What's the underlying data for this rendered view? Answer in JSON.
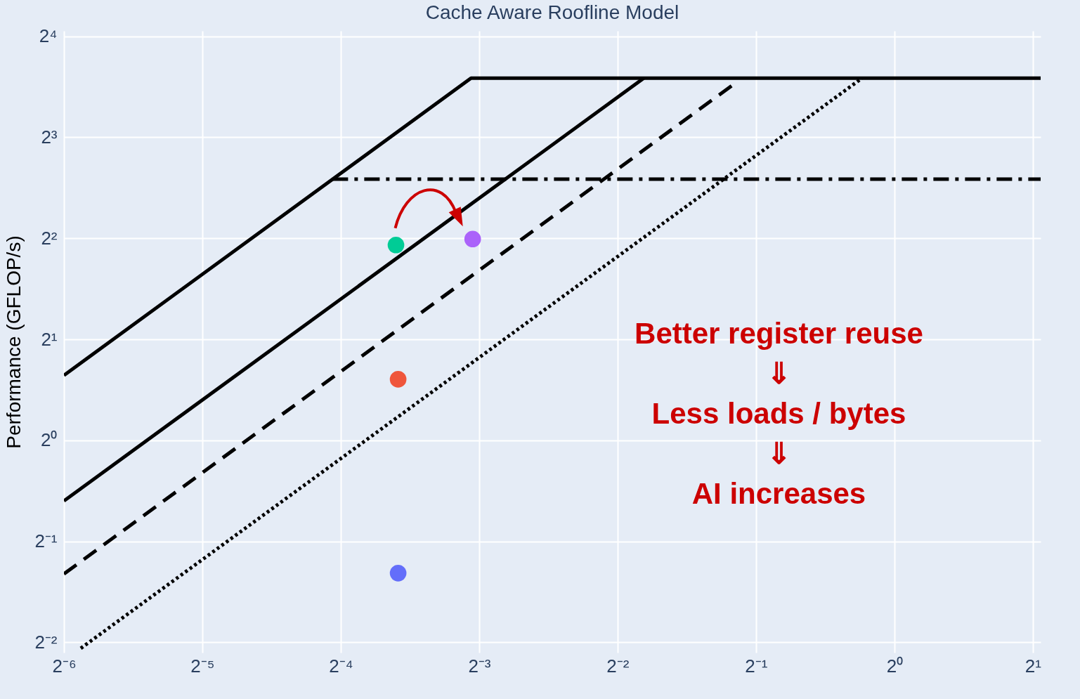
{
  "chart_data": {
    "type": "line",
    "title": "Cache Aware Roofline Model",
    "ylabel": "Performance (GFLOP/s)",
    "log": "xy",
    "grid": true,
    "xlim": [
      0.015625,
      2.08
    ],
    "ylim": [
      0.233,
      16.6
    ],
    "xticks": [
      {
        "value": 0.015625,
        "label": "2⁻⁶"
      },
      {
        "value": 0.03125,
        "label": "2⁻⁵"
      },
      {
        "value": 0.0625,
        "label": "2⁻⁴"
      },
      {
        "value": 0.125,
        "label": "2⁻³"
      },
      {
        "value": 0.25,
        "label": "2⁻²"
      },
      {
        "value": 0.5,
        "label": "2⁻¹"
      },
      {
        "value": 1,
        "label": "2⁰"
      },
      {
        "value": 2,
        "label": "2¹"
      }
    ],
    "yticks": [
      {
        "value": 0.25,
        "label": "2⁻²"
      },
      {
        "value": 0.5,
        "label": "2⁻¹"
      },
      {
        "value": 1,
        "label": "2⁰"
      },
      {
        "value": 2,
        "label": "2¹"
      },
      {
        "value": 4,
        "label": "2²"
      },
      {
        "value": 8,
        "label": "2³"
      },
      {
        "value": 16,
        "label": "2⁴"
      }
    ],
    "series": [
      {
        "type": "line",
        "color": "#000000",
        "line_style": "solid",
        "x": [
          0.015625,
          0.12,
          2.08
        ],
        "values": [
          1.5625,
          12,
          12
        ]
      },
      {
        "type": "line",
        "color": "#000000",
        "line_style": "solid",
        "x": [
          0.015625,
          0.285
        ],
        "values": [
          0.66,
          12
        ]
      },
      {
        "type": "line",
        "color": "#000000",
        "line_style": "dashed",
        "x": [
          0.015625,
          0.449
        ],
        "values": [
          0.4,
          11.56
        ]
      },
      {
        "type": "line",
        "color": "#000000",
        "line_style": "dotted",
        "x": [
          0.017,
          0.85
        ],
        "values": [
          0.24,
          12
        ]
      },
      {
        "type": "line",
        "color": "#000000",
        "line_style": "dashdot",
        "x": [
          0.06,
          2.08
        ],
        "values": [
          6,
          6
        ]
      },
      {
        "type": "scatter",
        "color": "#00cc96",
        "marker": "circle",
        "x": [
          0.0824
        ],
        "values": [
          3.82
        ]
      },
      {
        "type": "scatter",
        "color": "#ab63fa",
        "marker": "circle",
        "x": [
          0.121
        ],
        "values": [
          3.98
        ]
      },
      {
        "type": "scatter",
        "color": "#ef553b",
        "marker": "circle",
        "x": [
          0.0833
        ],
        "values": [
          1.52
        ]
      },
      {
        "type": "scatter",
        "color": "#636efa",
        "marker": "circle",
        "x": [
          0.0833
        ],
        "values": [
          0.402
        ]
      }
    ],
    "annotations": [
      "Better register reuse\n⇓\nLess loads / bytes\n⇓\nAI increases"
    ]
  }
}
